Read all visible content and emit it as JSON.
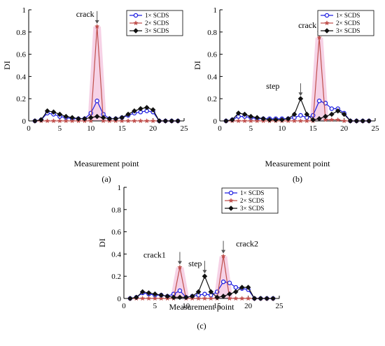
{
  "colors": {
    "s1": "#1f1fe0",
    "s2": "#c0504d",
    "s3": "#111111",
    "shade": "#f4c7e0",
    "arrow": "#555555"
  },
  "chart_data": [
    {
      "type": "line",
      "panel_label": "(a)",
      "xlabel": "Measurement point",
      "ylabel": "DI",
      "xlim": [
        0,
        25
      ],
      "ylim": [
        0,
        1
      ],
      "xticks": [
        0,
        5,
        10,
        15,
        20,
        25
      ],
      "yticks": [
        0,
        0.2,
        0.4,
        0.6,
        0.8,
        1
      ],
      "legend_position": "top-right",
      "series": [
        {
          "name": "1× SCDS",
          "color_key": "s1",
          "marker": "circle",
          "x": [
            1,
            2,
            3,
            4,
            5,
            6,
            7,
            8,
            9,
            10,
            11,
            12,
            13,
            14,
            15,
            16,
            17,
            18,
            19,
            20,
            21,
            22,
            23,
            24
          ],
          "y": [
            0,
            0.01,
            0.07,
            0.06,
            0.04,
            0.03,
            0.02,
            0.02,
            0.02,
            0.07,
            0.18,
            0.06,
            0.02,
            0.02,
            0.03,
            0.05,
            0.07,
            0.08,
            0.09,
            0.08,
            0,
            0,
            0,
            0
          ]
        },
        {
          "name": "2× SCDS",
          "color_key": "s2",
          "marker": "star",
          "x": [
            1,
            2,
            3,
            4,
            5,
            6,
            7,
            8,
            9,
            10,
            11,
            12,
            13,
            14,
            15,
            16,
            17,
            18,
            19,
            20,
            21,
            22,
            23,
            24
          ],
          "y": [
            0,
            0,
            0,
            0,
            0,
            0,
            0,
            0,
            0,
            0,
            0.85,
            0,
            0,
            0,
            0,
            0,
            0,
            0,
            0,
            0,
            0,
            0,
            0,
            0
          ]
        },
        {
          "name": "3× SCDS",
          "color_key": "s3",
          "marker": "diamond",
          "x": [
            1,
            2,
            3,
            4,
            5,
            6,
            7,
            8,
            9,
            10,
            11,
            12,
            13,
            14,
            15,
            16,
            17,
            18,
            19,
            20,
            21,
            22,
            23,
            24
          ],
          "y": [
            0,
            0.01,
            0.09,
            0.08,
            0.06,
            0.04,
            0.03,
            0.02,
            0.02,
            0.03,
            0.04,
            0.03,
            0.02,
            0.02,
            0.03,
            0.06,
            0.09,
            0.11,
            0.12,
            0.1,
            0,
            0,
            0,
            0
          ]
        }
      ],
      "shaded_peaks": [
        11
      ],
      "annotations": [
        {
          "text": "crack",
          "x": 11
        }
      ]
    },
    {
      "type": "line",
      "panel_label": "(b)",
      "xlabel": "Measurement point",
      "ylabel": "DI",
      "xlim": [
        0,
        25
      ],
      "ylim": [
        0,
        1
      ],
      "xticks": [
        0,
        5,
        10,
        15,
        20,
        25
      ],
      "yticks": [
        0,
        0.2,
        0.4,
        0.6,
        0.8,
        1
      ],
      "legend_position": "top-right",
      "series": [
        {
          "name": "1× SCDS",
          "color_key": "s1",
          "marker": "circle",
          "x": [
            1,
            2,
            3,
            4,
            5,
            6,
            7,
            8,
            9,
            10,
            11,
            12,
            13,
            14,
            15,
            16,
            17,
            18,
            19,
            20,
            21,
            22,
            23,
            24
          ],
          "y": [
            0,
            0.01,
            0.04,
            0.04,
            0.03,
            0.02,
            0.02,
            0.02,
            0.02,
            0.02,
            0.02,
            0.03,
            0.05,
            0.03,
            0.05,
            0.18,
            0.16,
            0.11,
            0.11,
            0.07,
            0,
            0,
            0,
            0
          ]
        },
        {
          "name": "2× SCDS",
          "color_key": "s2",
          "marker": "star",
          "x": [
            1,
            2,
            3,
            4,
            5,
            6,
            7,
            8,
            9,
            10,
            11,
            12,
            13,
            14,
            15,
            16,
            17,
            18,
            19,
            20,
            21,
            22,
            23,
            24
          ],
          "y": [
            0,
            0,
            0,
            0,
            0,
            0,
            0,
            0,
            0,
            0,
            0,
            0,
            0,
            0,
            0,
            0.75,
            0.01,
            0.01,
            0.01,
            0,
            0,
            0,
            0,
            0
          ]
        },
        {
          "name": "3× SCDS",
          "color_key": "s3",
          "marker": "diamond",
          "x": [
            1,
            2,
            3,
            4,
            5,
            6,
            7,
            8,
            9,
            10,
            11,
            12,
            13,
            14,
            15,
            16,
            17,
            18,
            19,
            20,
            21,
            22,
            23,
            24
          ],
          "y": [
            0,
            0.01,
            0.07,
            0.06,
            0.04,
            0.03,
            0.02,
            0.01,
            0.01,
            0.01,
            0.02,
            0.06,
            0.2,
            0.06,
            0.01,
            0.02,
            0.04,
            0.06,
            0.09,
            0.06,
            0,
            0,
            0,
            0
          ]
        }
      ],
      "shaded_peaks": [
        16
      ],
      "annotations": [
        {
          "text": "step",
          "x": 13
        },
        {
          "text": "crack",
          "x": 16
        }
      ]
    },
    {
      "type": "line",
      "panel_label": "(c)",
      "xlabel": "Measurement point",
      "ylabel": "DI",
      "xlim": [
        0,
        25
      ],
      "ylim": [
        0,
        1
      ],
      "xticks": [
        0,
        5,
        10,
        15,
        20,
        25
      ],
      "yticks": [
        0,
        0.2,
        0.4,
        0.6,
        0.8,
        1
      ],
      "legend_position": "top-right",
      "series": [
        {
          "name": "1× SCDS",
          "color_key": "s1",
          "marker": "circle",
          "x": [
            1,
            2,
            3,
            4,
            5,
            6,
            7,
            8,
            9,
            10,
            11,
            12,
            13,
            14,
            15,
            16,
            17,
            18,
            19,
            20,
            21,
            22,
            23,
            24
          ],
          "y": [
            0,
            0.01,
            0.05,
            0.04,
            0.03,
            0.03,
            0.02,
            0.04,
            0.07,
            0.01,
            0.02,
            0.03,
            0.04,
            0.03,
            0.06,
            0.15,
            0.14,
            0.1,
            0.09,
            0.08,
            0,
            0,
            0,
            0
          ]
        },
        {
          "name": "2× SCDS",
          "color_key": "s2",
          "marker": "star",
          "x": [
            1,
            2,
            3,
            4,
            5,
            6,
            7,
            8,
            9,
            10,
            11,
            12,
            13,
            14,
            15,
            16,
            17,
            18,
            19,
            20,
            21,
            22,
            23,
            24
          ],
          "y": [
            0,
            0,
            0,
            0,
            0,
            0,
            0,
            0,
            0.28,
            0,
            0,
            0,
            0,
            0,
            0,
            0.38,
            0,
            0,
            0,
            0,
            0,
            0,
            0,
            0
          ]
        },
        {
          "name": "3× SCDS",
          "color_key": "s3",
          "marker": "diamond",
          "x": [
            1,
            2,
            3,
            4,
            5,
            6,
            7,
            8,
            9,
            10,
            11,
            12,
            13,
            14,
            15,
            16,
            17,
            18,
            19,
            20,
            21,
            22,
            23,
            24
          ],
          "y": [
            0,
            0.01,
            0.06,
            0.05,
            0.04,
            0.03,
            0.02,
            0.01,
            0.01,
            0.01,
            0.02,
            0.06,
            0.2,
            0.06,
            0.01,
            0.02,
            0.04,
            0.06,
            0.1,
            0.1,
            0,
            0,
            0,
            0
          ]
        }
      ],
      "shaded_peaks": [
        9,
        16
      ],
      "annotations": [
        {
          "text": "crack1",
          "x": 9
        },
        {
          "text": "step",
          "x": 13
        },
        {
          "text": "crack2",
          "x": 16
        }
      ]
    }
  ]
}
